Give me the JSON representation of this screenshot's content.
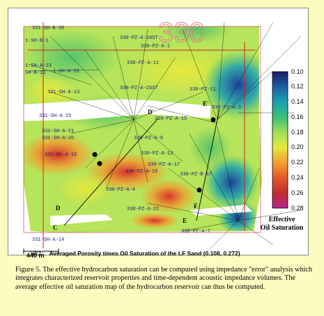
{
  "map": {
    "legend": {
      "ticks": [
        "0.10",
        "0.12",
        "0.14",
        "0.16",
        "0.18",
        "0.20",
        "0.22",
        "0.24",
        "0.26",
        "0.28"
      ],
      "title_line1": "Effective",
      "title_line2": "Oil Saturation",
      "colors": [
        "#1a1a6e",
        "#1f5fa0",
        "#1aa0b4",
        "#3cbe78",
        "#9ee05a",
        "#e6e83c",
        "#f2a030",
        "#e35a28",
        "#c02c2c",
        "#b82490"
      ]
    },
    "footer": {
      "code": "HR2:",
      "text": "Averaged Porosity times Oil Saturation of the LF Sand (0.108, 0.272)"
    },
    "scale": {
      "label": "440 m"
    },
    "section_letters": {
      "C": "C",
      "D": "D",
      "E": "E",
      "F": "F",
      "D_prime": "D'",
      "E_prime": "E'"
    },
    "well_labels": [
      "331-SH-B-30",
      "1-SH-B-1",
      "330-PZ-A-10ST",
      "330-PZ-A-1",
      "1-SH-A-23",
      "SH-B-15",
      "1-SH-A-26",
      "330-PZ-A-11",
      "331-SH-A-13",
      "330-PZ-A-26ST",
      "330-PZ-11",
      "331-SH-A-15",
      "330-PZ-A-15",
      "330-F2-A-3",
      "331-SH-A-21",
      "331-SH-A-20",
      "331-SH-A-16",
      "330-PZ-A-9",
      "330-PZ-A-13",
      "330-PZ-A-19",
      "330-PZ-A-4",
      "330-PZ-A-21",
      "331-SH-A-14",
      "330-PZ-A-7",
      "330-PZ-A-17",
      "330-PZ-B-17"
    ]
  },
  "caption": {
    "text": "Figure 5.  The effective hydrocarbon saturation can be computed using impedance \"error\" analysis which integrates characterized reservoir properties and time-dependent acoustic impedance volumes.  The average effective oil saturation map of the hydrocarbon reservoir can thus be computed."
  }
}
